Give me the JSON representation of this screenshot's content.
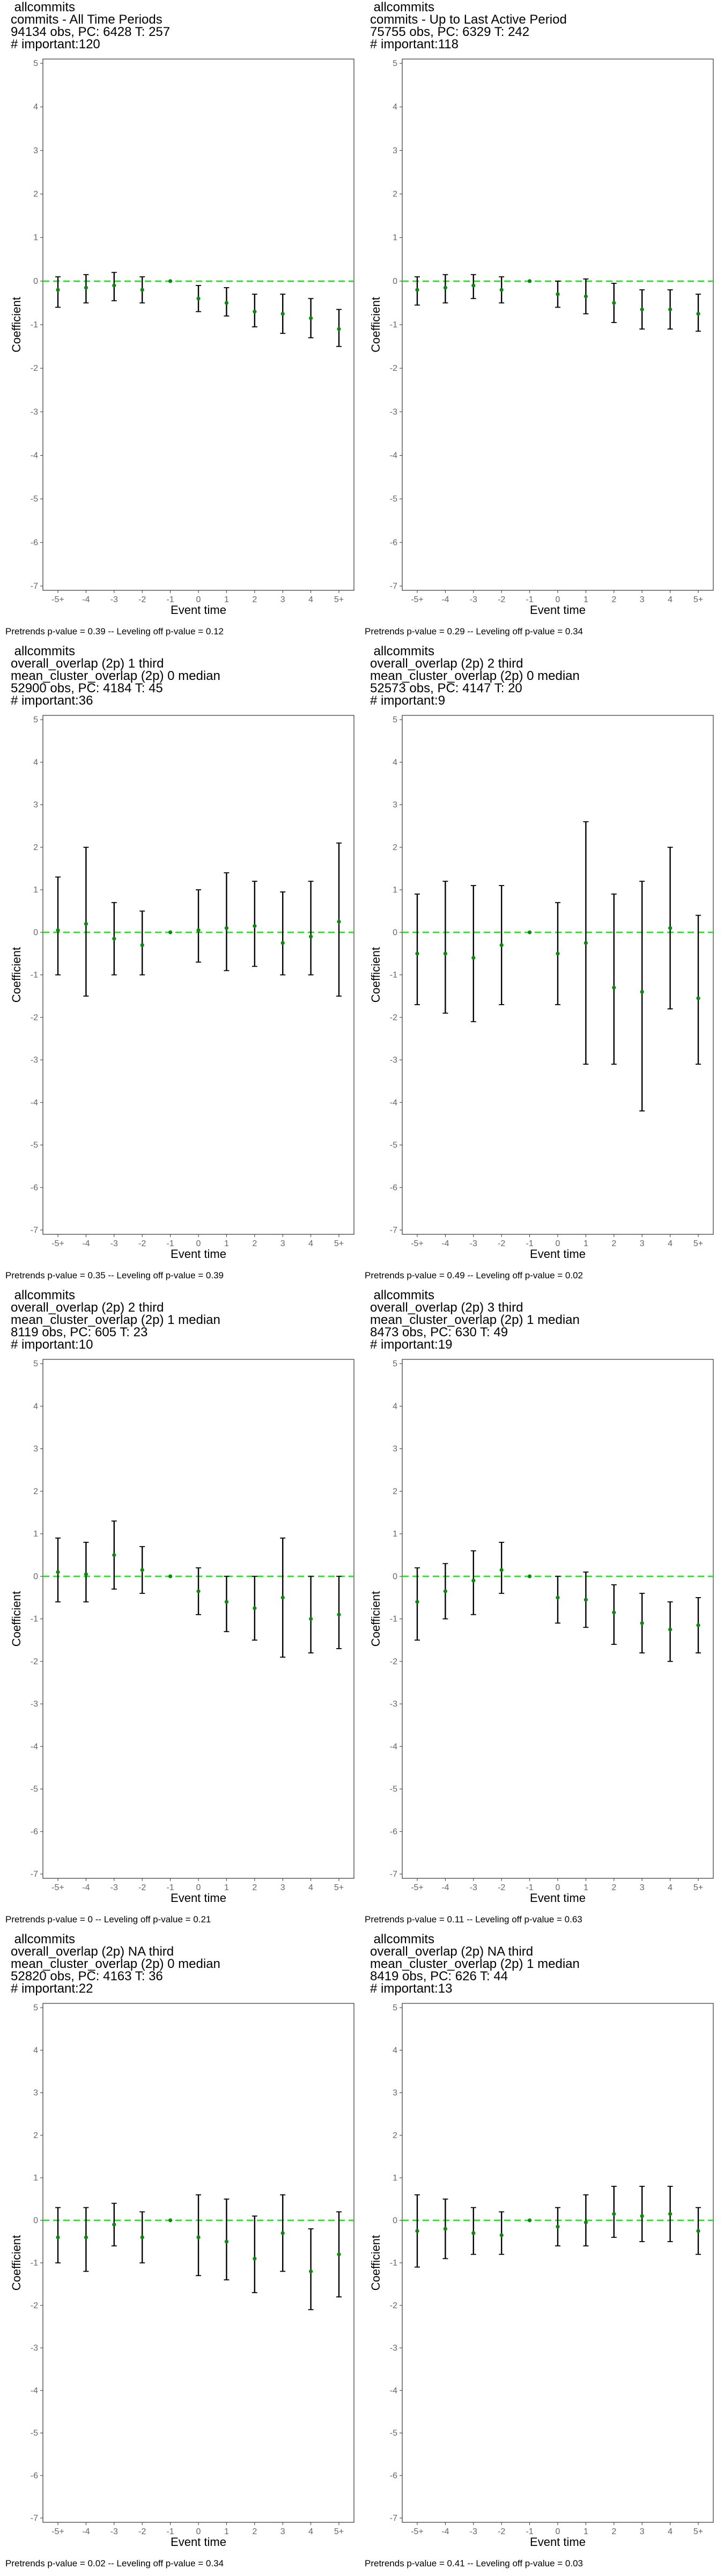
{
  "colors": {
    "zero_line": "#22dd22",
    "point": "#0a8a0a",
    "errorbar": "#000000",
    "frame": "#333333"
  },
  "chart_data": [
    {
      "type": "scatter",
      "title_lines": [
        "allcommits",
        "commits - All Time Periods",
        "94134 obs, PC: 6428 T: 257",
        "# important:120"
      ],
      "xlabel": "Event time",
      "ylabel": "Coefficient",
      "x": [
        "-5+",
        "-4",
        "-3",
        "-2",
        "-1",
        "0",
        "1",
        "2",
        "3",
        "4",
        "5+"
      ],
      "y": [
        -0.2,
        -0.15,
        -0.1,
        -0.2,
        0.0,
        -0.4,
        -0.5,
        -0.7,
        -0.75,
        -0.85,
        -1.1
      ],
      "ci_low": [
        -0.6,
        -0.5,
        -0.45,
        -0.5,
        0.0,
        -0.7,
        -0.8,
        -1.05,
        -1.2,
        -1.3,
        -1.5
      ],
      "ci_high": [
        0.1,
        0.15,
        0.2,
        0.1,
        0.0,
        -0.1,
        -0.15,
        -0.3,
        -0.3,
        -0.4,
        -0.65
      ],
      "ylim": [
        -7,
        5
      ],
      "yticks": [
        -7,
        -6,
        -5,
        -4,
        -3,
        -2,
        -1,
        0,
        1,
        2,
        3,
        4,
        5
      ],
      "footer": "Pretrends p-value = 0.39 -- Leveling off p-value = 0.12"
    },
    {
      "type": "scatter",
      "title_lines": [
        "allcommits",
        "commits - Up to Last Active Period",
        "75755 obs, PC: 6329 T: 242",
        "# important:118"
      ],
      "xlabel": "Event time",
      "ylabel": "Coefficient",
      "x": [
        "-5+",
        "-4",
        "-3",
        "-2",
        "-1",
        "0",
        "1",
        "2",
        "3",
        "4",
        "5+"
      ],
      "y": [
        -0.2,
        -0.15,
        -0.1,
        -0.2,
        0.0,
        -0.3,
        -0.35,
        -0.5,
        -0.65,
        -0.65,
        -0.75
      ],
      "ci_low": [
        -0.55,
        -0.5,
        -0.4,
        -0.5,
        0.0,
        -0.6,
        -0.75,
        -0.95,
        -1.1,
        -1.1,
        -1.15
      ],
      "ci_high": [
        0.1,
        0.15,
        0.15,
        0.1,
        0.0,
        0.0,
        0.05,
        -0.05,
        -0.2,
        -0.2,
        -0.3
      ],
      "ylim": [
        -7,
        5
      ],
      "yticks": [
        -7,
        -6,
        -5,
        -4,
        -3,
        -2,
        -1,
        0,
        1,
        2,
        3,
        4,
        5
      ],
      "footer": "Pretrends p-value = 0.29 -- Leveling off p-value = 0.34"
    },
    {
      "type": "scatter",
      "title_lines": [
        "allcommits",
        "overall_overlap (2p) 1 third",
        "mean_cluster_overlap (2p) 0 median",
        "52900 obs, PC: 4184 T: 45",
        "# important:36"
      ],
      "xlabel": "Event time",
      "ylabel": "Coefficient",
      "x": [
        "-5+",
        "-4",
        "-3",
        "-2",
        "-1",
        "0",
        "1",
        "2",
        "3",
        "4",
        "5+"
      ],
      "y": [
        0.05,
        0.2,
        -0.15,
        -0.3,
        0.0,
        0.05,
        0.1,
        0.15,
        -0.25,
        -0.1,
        0.25
      ],
      "ci_low": [
        -1.0,
        -1.5,
        -1.0,
        -1.0,
        0.0,
        -0.7,
        -0.9,
        -0.8,
        -1.0,
        -1.0,
        -1.5
      ],
      "ci_high": [
        1.3,
        2.0,
        0.7,
        0.5,
        0.0,
        1.0,
        1.4,
        1.2,
        0.95,
        1.2,
        2.1
      ],
      "ylim": [
        -7,
        5
      ],
      "yticks": [
        -7,
        -6,
        -5,
        -4,
        -3,
        -2,
        -1,
        0,
        1,
        2,
        3,
        4,
        5
      ],
      "footer": "Pretrends p-value = 0.35 -- Leveling off p-value = 0.39"
    },
    {
      "type": "scatter",
      "title_lines": [
        "allcommits",
        "overall_overlap (2p) 2 third",
        "mean_cluster_overlap (2p) 0 median",
        "52573 obs, PC: 4147 T: 20",
        "# important:9"
      ],
      "xlabel": "Event time",
      "ylabel": "Coefficient",
      "x": [
        "-5+",
        "-4",
        "-3",
        "-2",
        "-1",
        "0",
        "1",
        "2",
        "3",
        "4",
        "5+"
      ],
      "y": [
        -0.5,
        -0.5,
        -0.6,
        -0.3,
        0.0,
        -0.5,
        -0.25,
        -1.3,
        -1.4,
        0.1,
        -1.55
      ],
      "ci_low": [
        -1.7,
        -1.9,
        -2.1,
        -1.7,
        0.0,
        -1.7,
        -3.1,
        -3.1,
        -4.2,
        -1.8,
        -3.1
      ],
      "ci_high": [
        0.9,
        1.2,
        1.1,
        1.1,
        0.0,
        0.7,
        2.6,
        0.9,
        1.2,
        2.0,
        0.4
      ],
      "ylim": [
        -7,
        5
      ],
      "yticks": [
        -7,
        -6,
        -5,
        -4,
        -3,
        -2,
        -1,
        0,
        1,
        2,
        3,
        4,
        5
      ],
      "footer": "Pretrends p-value = 0.49 -- Leveling off p-value = 0.02"
    },
    {
      "type": "scatter",
      "title_lines": [
        "allcommits",
        "overall_overlap (2p) 2 third",
        "mean_cluster_overlap (2p) 1 median",
        "8119 obs, PC: 605 T: 23",
        "# important:10"
      ],
      "xlabel": "Event time",
      "ylabel": "Coefficient",
      "x": [
        "-5+",
        "-4",
        "-3",
        "-2",
        "-1",
        "0",
        "1",
        "2",
        "3",
        "4",
        "5+"
      ],
      "y": [
        0.1,
        0.05,
        0.5,
        0.15,
        0.0,
        -0.35,
        -0.6,
        -0.75,
        -0.5,
        -1.0,
        -0.9
      ],
      "ci_low": [
        -0.6,
        -0.6,
        -0.3,
        -0.4,
        0.0,
        -0.9,
        -1.3,
        -1.5,
        -1.9,
        -1.8,
        -1.7
      ],
      "ci_high": [
        0.9,
        0.8,
        1.3,
        0.7,
        0.0,
        0.2,
        0.0,
        0.0,
        0.9,
        0.0,
        0.0
      ],
      "ylim": [
        -7,
        5
      ],
      "yticks": [
        -7,
        -6,
        -5,
        -4,
        -3,
        -2,
        -1,
        0,
        1,
        2,
        3,
        4,
        5
      ],
      "footer": "Pretrends p-value = 0 -- Leveling off p-value = 0.21"
    },
    {
      "type": "scatter",
      "title_lines": [
        "allcommits",
        "overall_overlap (2p) 3 third",
        "mean_cluster_overlap (2p) 1 median",
        "8473 obs, PC: 630 T: 49",
        "# important:19"
      ],
      "xlabel": "Event time",
      "ylabel": "Coefficient",
      "x": [
        "-5+",
        "-4",
        "-3",
        "-2",
        "-1",
        "0",
        "1",
        "2",
        "3",
        "4",
        "5+"
      ],
      "y": [
        -0.6,
        -0.35,
        -0.1,
        0.15,
        0.0,
        -0.5,
        -0.55,
        -0.85,
        -1.1,
        -1.25,
        -1.15
      ],
      "ci_low": [
        -1.5,
        -1.0,
        -0.9,
        -0.4,
        0.0,
        -1.1,
        -1.2,
        -1.6,
        -1.8,
        -2.0,
        -1.8
      ],
      "ci_high": [
        0.2,
        0.3,
        0.6,
        0.8,
        0.0,
        0.0,
        0.1,
        -0.2,
        -0.4,
        -0.6,
        -0.5
      ],
      "ylim": [
        -7,
        5
      ],
      "yticks": [
        -7,
        -6,
        -5,
        -4,
        -3,
        -2,
        -1,
        0,
        1,
        2,
        3,
        4,
        5
      ],
      "footer": "Pretrends p-value = 0.11 -- Leveling off p-value = 0.63"
    },
    {
      "type": "scatter",
      "title_lines": [
        "allcommits",
        "overall_overlap (2p) NA third",
        "mean_cluster_overlap (2p) 0 median",
        "52820 obs, PC: 4163 T: 36",
        "# important:22"
      ],
      "xlabel": "Event time",
      "ylabel": "Coefficient",
      "x": [
        "-5+",
        "-4",
        "-3",
        "-2",
        "-1",
        "0",
        "1",
        "2",
        "3",
        "4",
        "5+"
      ],
      "y": [
        -0.4,
        -0.4,
        -0.1,
        -0.4,
        0.0,
        -0.4,
        -0.5,
        -0.9,
        -0.3,
        -1.2,
        -0.8
      ],
      "ci_low": [
        -1.0,
        -1.2,
        -0.6,
        -1.0,
        0.0,
        -1.3,
        -1.4,
        -1.7,
        -1.2,
        -2.1,
        -1.8
      ],
      "ci_high": [
        0.3,
        0.3,
        0.4,
        0.2,
        0.0,
        0.6,
        0.5,
        0.1,
        0.6,
        -0.2,
        0.2
      ],
      "ylim": [
        -7,
        5
      ],
      "yticks": [
        -7,
        -6,
        -5,
        -4,
        -3,
        -2,
        -1,
        0,
        1,
        2,
        3,
        4,
        5
      ],
      "footer": "Pretrends p-value = 0.02 -- Leveling off p-value = 0.34"
    },
    {
      "type": "scatter",
      "title_lines": [
        "allcommits",
        "overall_overlap (2p) NA third",
        "mean_cluster_overlap (2p) 1 median",
        "8419 obs, PC: 626 T: 44",
        "# important:13"
      ],
      "xlabel": "Event time",
      "ylabel": "Coefficient",
      "x": [
        "-5+",
        "-4",
        "-3",
        "-2",
        "-1",
        "0",
        "1",
        "2",
        "3",
        "4",
        "5+"
      ],
      "y": [
        -0.25,
        -0.2,
        -0.3,
        -0.35,
        0.0,
        -0.15,
        -0.05,
        0.15,
        0.1,
        0.15,
        -0.25
      ],
      "ci_low": [
        -1.1,
        -0.9,
        -0.8,
        -0.8,
        0.0,
        -0.6,
        -0.6,
        -0.4,
        -0.5,
        -0.5,
        -0.8
      ],
      "ci_high": [
        0.6,
        0.5,
        0.3,
        0.2,
        0.0,
        0.3,
        0.6,
        0.8,
        0.8,
        0.8,
        0.3
      ],
      "ylim": [
        -7,
        5
      ],
      "yticks": [
        -7,
        -6,
        -5,
        -4,
        -3,
        -2,
        -1,
        0,
        1,
        2,
        3,
        4,
        5
      ],
      "footer": "Pretrends p-value = 0.41 -- Leveling off p-value = 0.03"
    }
  ]
}
